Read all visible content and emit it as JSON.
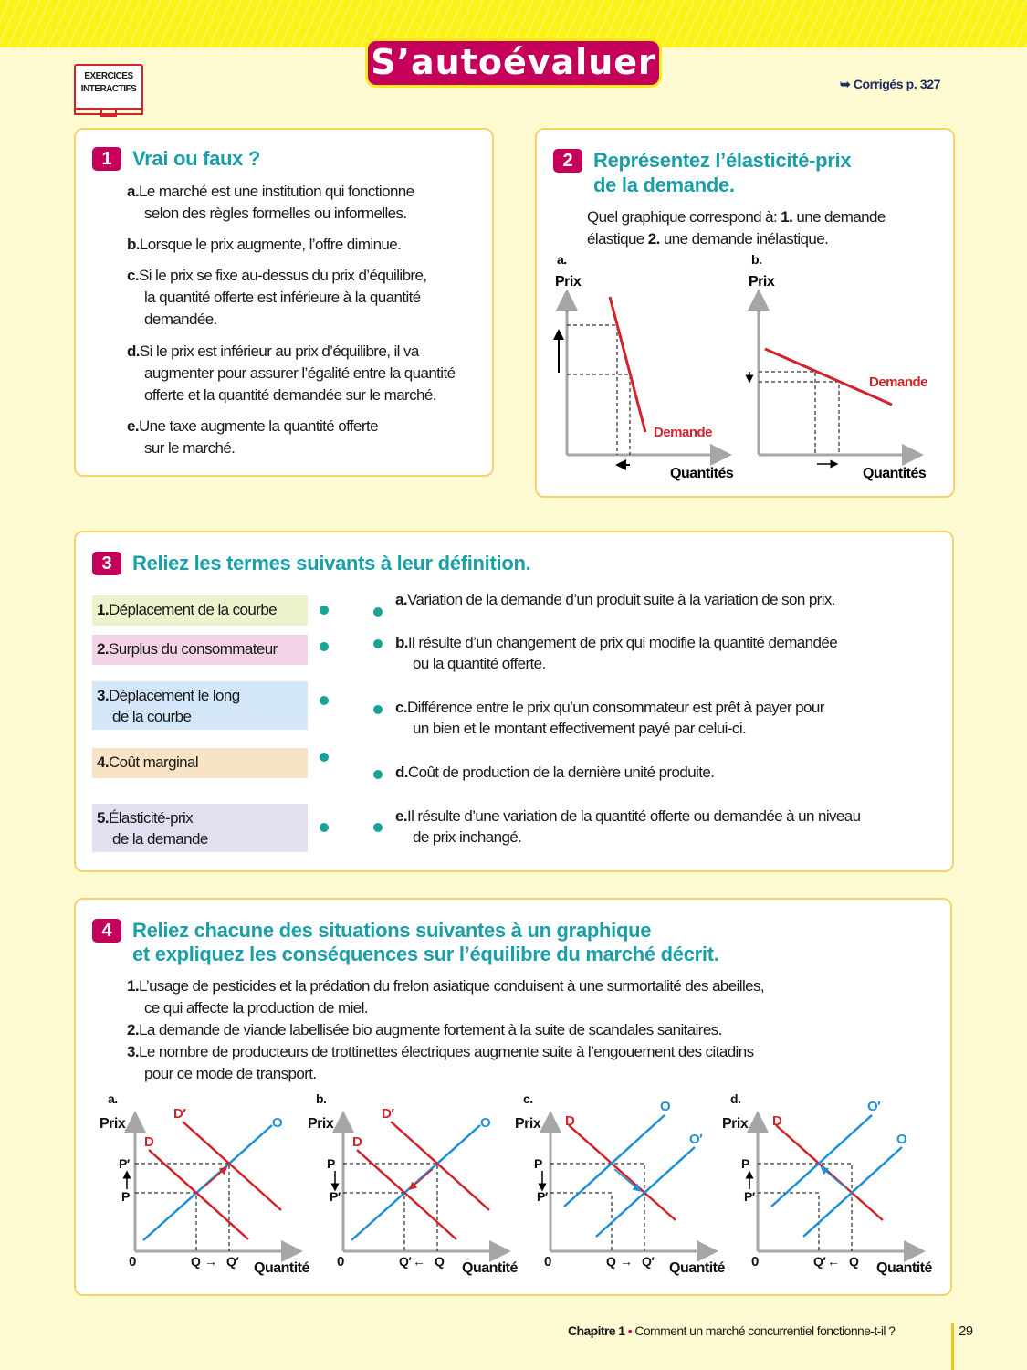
{
  "header": {
    "title": "S’autoévaluer",
    "interactive_label_1": "EXERCICES",
    "interactive_label_2": "INTERACTIFS",
    "corrections": "➥ Corrigés p. 327"
  },
  "ex1": {
    "number": "1",
    "title": "Vrai ou faux ?",
    "items": [
      {
        "letter": "a.",
        "lines": [
          "Le marché est une institution qui fonctionne",
          "selon des règles formelles ou informelles."
        ]
      },
      {
        "letter": "b.",
        "lines": [
          "Lorsque le prix augmente, l’offre diminue."
        ]
      },
      {
        "letter": "c.",
        "lines": [
          "Si le prix se fixe au-dessus du prix d’équilibre,",
          "la quantité offerte est inférieure à la quantité",
          "demandée."
        ]
      },
      {
        "letter": "d.",
        "lines": [
          "Si le prix est inférieur au prix d’équilibre, il va",
          "augmenter pour assurer l’égalité entre la quantité",
          "offerte et la quantité demandée sur le marché."
        ]
      },
      {
        "letter": "e.",
        "lines": [
          "Une taxe augmente la quantité offerte",
          "sur le marché."
        ]
      }
    ]
  },
  "ex2": {
    "number": "2",
    "title_1": "Représentez l’élasticité-prix",
    "title_2": "de la demande.",
    "question_1a": "Quel graphique correspond à: ",
    "question_1b": "1.",
    "question_1c": " une demande",
    "question_2a": "élastique ",
    "question_2b": "2.",
    "question_2c": " une demande inélastique.",
    "graphs": [
      {
        "label": "a.",
        "y_axis": "Prix",
        "x_axis": "Quantités",
        "curve": "Demande"
      },
      {
        "label": "b.",
        "y_axis": "Prix",
        "x_axis": "Quantités",
        "curve": "Demande"
      }
    ]
  },
  "ex3": {
    "number": "3",
    "title": "Reliez les termes suivants à leur définition.",
    "terms": [
      {
        "num": "1.",
        "lines": [
          "Déplacement de la courbe"
        ],
        "color": "#eef2cc"
      },
      {
        "num": "2.",
        "lines": [
          "Surplus du consommateur"
        ],
        "color": "#f3d3e6"
      },
      {
        "num": "3.",
        "lines": [
          "Déplacement le long",
          "de la courbe"
        ],
        "color": "#d4e7f8"
      },
      {
        "num": "4.",
        "lines": [
          "Coût marginal"
        ],
        "color": "#f8e3c4"
      },
      {
        "num": "5.",
        "lines": [
          "Élasticité-prix",
          "de la demande"
        ],
        "color": "#e1dff0"
      }
    ],
    "definitions": [
      {
        "letter": "a.",
        "lines": [
          "Variation de la demande d’un produit suite à la variation de son prix."
        ]
      },
      {
        "letter": "b.",
        "lines": [
          "Il résulte d’un changement de prix qui modifie la quantité demandée",
          "ou la quantité offerte."
        ]
      },
      {
        "letter": "c.",
        "lines": [
          "Différence entre le prix qu’un consommateur est prêt à payer pour",
          "un bien et le montant effectivement payé par celui-ci."
        ]
      },
      {
        "letter": "d.",
        "lines": [
          "Coût de production de la dernière unité produite."
        ]
      },
      {
        "letter": "e.",
        "lines": [
          "Il résulte d’une variation de la quantité offerte ou demandée à un niveau",
          "de prix inchangé."
        ]
      }
    ]
  },
  "ex4": {
    "number": "4",
    "title_1": "Reliez chacune des situations suivantes à un graphique",
    "title_2": "et expliquez les conséquences sur l’équilibre du marché décrit.",
    "situations": [
      {
        "num": "1.",
        "lines": [
          "L’usage de pesticides et la prédation du frelon asiatique conduisent à une surmortalité des abeilles,",
          "ce qui affecte la production de miel."
        ]
      },
      {
        "num": "2.",
        "lines": [
          "La demande de viande labellisée bio augmente fortement à la suite de scandales sanitaires."
        ]
      },
      {
        "num": "3.",
        "lines": [
          "Le nombre de producteurs de trottinettes électriques augmente suite à l’engouement des citadins",
          "pour ce mode de transport."
        ]
      }
    ],
    "graphs": [
      {
        "label": "a.",
        "y_axis": "Prix",
        "x_axis": "Quantité",
        "origin": "0",
        "p_top": "P′",
        "p_bottom": "P",
        "q_left": "Q",
        "q_right": "Q′",
        "q_arrow": "→",
        "d1": "D",
        "d2": "D′",
        "o1": "O",
        "o2": ""
      },
      {
        "label": "b.",
        "y_axis": "Prix",
        "x_axis": "Quantité",
        "origin": "0",
        "p_top": "P",
        "p_bottom": "P′",
        "q_left": "Q′",
        "q_right": "Q",
        "q_arrow": "←",
        "d1": "D′",
        "d2": "D",
        "o1": "O",
        "o2": ""
      },
      {
        "label": "c.",
        "y_axis": "Prix",
        "x_axis": "Quantité",
        "origin": "0",
        "p_top": "P",
        "p_bottom": "P′",
        "q_left": "Q",
        "q_right": "Q′",
        "q_arrow": "→",
        "d1": "D",
        "d2": "",
        "o1": "O",
        "o2": "O′"
      },
      {
        "label": "d.",
        "y_axis": "Prix",
        "x_axis": "Quantité",
        "origin": "0",
        "p_top": "P",
        "p_bottom": "P′",
        "q_left": "Q′",
        "q_right": "Q",
        "q_arrow": "←",
        "d1": "D",
        "d2": "",
        "o1": "O′",
        "o2": "O"
      }
    ]
  },
  "footer": {
    "chapter": "Chapitre 1",
    "separator": " • ",
    "subtitle": "Comment un marché concurrentiel fonctionne-t-il ?",
    "page": "29"
  },
  "colors": {
    "accent": "#c4005a",
    "heading": "#1a9fa8",
    "demand": "#d2232a",
    "supply": "#1e90d8",
    "dot": "#17a398"
  }
}
